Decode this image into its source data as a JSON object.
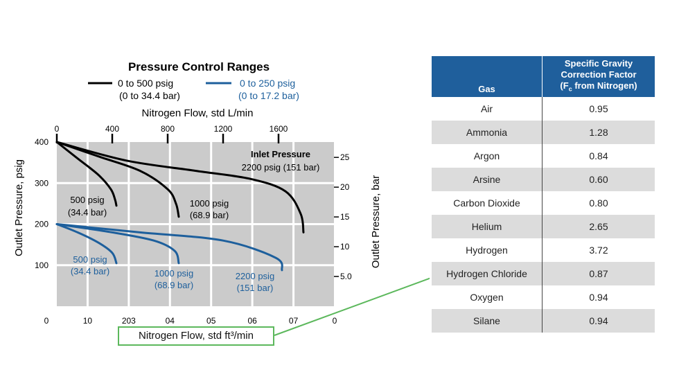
{
  "chart_data": {
    "type": "line",
    "title": "Pressure Control Ranges",
    "legend": [
      {
        "name": "0 to 500 psig",
        "sub": "(0 to 34.4 bar)",
        "color": "#000000"
      },
      {
        "name": "0 to 250 psig",
        "sub": "(0 to 17.2 bar)",
        "color": "#1d5f9c"
      }
    ],
    "xlabel_top": "Nitrogen Flow, std L/min",
    "xlabel_bottom": "Nitrogen Flow, std ft³/min",
    "ylabel_left": "Outlet Pressure, psig",
    "ylabel_right": "Outlet Pressure, bar",
    "xlim_top": [
      0,
      2000
    ],
    "ylim": [
      0,
      400
    ],
    "top_ticks": [
      {
        "v": 0,
        "label": "0"
      },
      {
        "v": 400,
        "label": "400"
      },
      {
        "v": 800,
        "label": "800"
      },
      {
        "v": 1200,
        "label": "1200"
      },
      {
        "v": 1600,
        "label": "1600"
      }
    ],
    "bottom_tick_labels": [
      "0",
      "10",
      "203",
      "04",
      "05",
      "06",
      "07",
      "0"
    ],
    "left_ticks": [
      {
        "v": 100,
        "label": "100"
      },
      {
        "v": 200,
        "label": "200"
      },
      {
        "v": 300,
        "label": "300"
      },
      {
        "v": 400,
        "label": "400"
      }
    ],
    "right_ticks": [
      {
        "v": 5,
        "label": "5.0"
      },
      {
        "v": 10,
        "label": "10"
      },
      {
        "v": 15,
        "label": "15"
      },
      {
        "v": 20,
        "label": "20"
      },
      {
        "v": 25,
        "label": "25"
      }
    ],
    "grid": true,
    "series": [
      {
        "range": "0 to 500 psig",
        "color": "#000000",
        "label": [
          "500 psig",
          "(34.4 bar)"
        ],
        "points": [
          [
            0,
            400
          ],
          [
            150,
            360
          ],
          [
            300,
            320
          ],
          [
            390,
            285
          ],
          [
            420,
            260
          ],
          [
            430,
            245
          ]
        ]
      },
      {
        "range": "0 to 500 psig",
        "color": "#000000",
        "label": [
          "1000 psig",
          "(68.9 bar)"
        ],
        "points": [
          [
            0,
            400
          ],
          [
            300,
            365
          ],
          [
            600,
            330
          ],
          [
            800,
            285
          ],
          [
            860,
            250
          ],
          [
            880,
            218
          ]
        ]
      },
      {
        "range": "0 to 500 psig",
        "color": "#000000",
        "label": [
          "Inlet Pressure",
          "2200 psig (151 bar)"
        ],
        "points": [
          [
            0,
            400
          ],
          [
            500,
            355
          ],
          [
            1000,
            330
          ],
          [
            1400,
            310
          ],
          [
            1650,
            280
          ],
          [
            1760,
            225
          ],
          [
            1780,
            180
          ]
        ]
      },
      {
        "range": "0 to 250 psig",
        "color": "#1d5f9c",
        "label": [
          "500 psig",
          "(34.4 bar)"
        ],
        "points": [
          [
            0,
            200
          ],
          [
            150,
            180
          ],
          [
            300,
            155
          ],
          [
            400,
            130
          ],
          [
            430,
            105
          ]
        ]
      },
      {
        "range": "0 to 250 psig",
        "color": "#1d5f9c",
        "label": [
          "1000 psig",
          "(68.9 bar)"
        ],
        "points": [
          [
            0,
            200
          ],
          [
            400,
            180
          ],
          [
            700,
            160
          ],
          [
            850,
            135
          ],
          [
            880,
            105
          ]
        ]
      },
      {
        "range": "0 to 250 psig",
        "color": "#1d5f9c",
        "label": [
          "2200 psig",
          "(151 bar)"
        ],
        "points": [
          [
            0,
            200
          ],
          [
            600,
            180
          ],
          [
            1200,
            160
          ],
          [
            1580,
            118
          ],
          [
            1625,
            88
          ]
        ]
      }
    ]
  },
  "table": {
    "headers": [
      "Gas",
      "Specific Gravity Correction Factor (Fc from Nitrogen)"
    ],
    "header_line1": "Specific Gravity",
    "header_line2": "Correction Factor",
    "header_line3_a": "(F",
    "header_line3_sub": "c",
    "header_line3_b": " from Nitrogen)",
    "rows": [
      {
        "gas": "Air",
        "factor": "0.95"
      },
      {
        "gas": "Ammonia",
        "factor": "1.28"
      },
      {
        "gas": "Argon",
        "factor": "0.84"
      },
      {
        "gas": "Arsine",
        "factor": "0.60"
      },
      {
        "gas": "Carbon Dioxide",
        "factor": "0.80"
      },
      {
        "gas": "Helium",
        "factor": "2.65"
      },
      {
        "gas": "Hydrogen",
        "factor": "3.72"
      },
      {
        "gas": "Hydrogen Chloride",
        "factor": "0.87"
      },
      {
        "gas": "Oxygen",
        "factor": "0.94"
      },
      {
        "gas": "Silane",
        "factor": "0.94"
      }
    ]
  },
  "colors": {
    "grid_bg": "#cbcbcb",
    "callout": "#5cb85c",
    "header_bg": "#1f5f9c",
    "row_alt": "#dcdcdc"
  }
}
